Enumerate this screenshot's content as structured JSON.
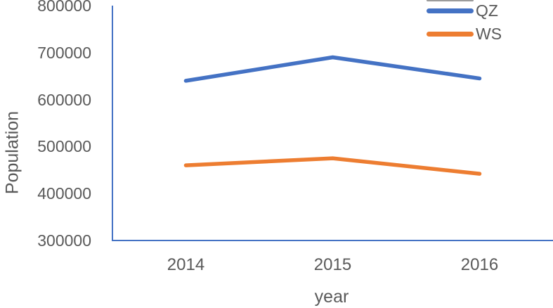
{
  "chart_data": {
    "type": "line",
    "title": "",
    "xlabel": "year",
    "ylabel": "Population",
    "categories": [
      "2014",
      "2015",
      "2016"
    ],
    "series": [
      {
        "name": "QZ",
        "color": "#4472C4",
        "values": [
          640000,
          690000,
          645000
        ]
      },
      {
        "name": "WS",
        "color": "#ED7D31",
        "values": [
          460000,
          475000,
          442000
        ]
      }
    ],
    "ylim": [
      300000,
      800000
    ],
    "yticks": [
      "300000",
      "400000",
      "500000",
      "600000",
      "700000",
      "800000"
    ],
    "ytick_step": 100000,
    "grid": false,
    "legend_position": "top-right",
    "axis_color": "#4472C4",
    "text_color": "#595959",
    "line_width": 5.5,
    "cropped_legend_mark_color": "#9B9B9B"
  }
}
